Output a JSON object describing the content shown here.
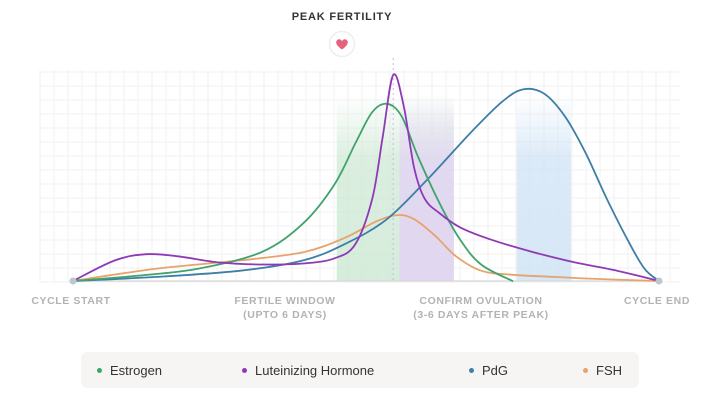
{
  "chart_data": {
    "type": "line",
    "title": "PEAK FERTILITY",
    "x_annotations": [
      {
        "lines": [
          "CYCLE START"
        ]
      },
      {
        "lines": [
          "FERTILE WINDOW",
          "(UPTO 6 DAYS)"
        ]
      },
      {
        "lines": [
          "CONFIRM OVULATION",
          "(3-6 DAYS AFTER PEAK)"
        ]
      },
      {
        "lines": [
          "CYCLE END"
        ]
      }
    ],
    "x_range": [
      0,
      28
    ],
    "y_range": [
      0,
      100
    ],
    "grid": true,
    "legend_position": "bottom",
    "bands": [
      {
        "from": 12.6,
        "to": 18.2,
        "color": "#cfe9d5"
      },
      {
        "from": 15.6,
        "to": 18.2,
        "color": "#e3d3f5"
      },
      {
        "from": 21.2,
        "to": 23.8,
        "color": "#cfe3f5"
      }
    ],
    "peak_marker_x": 15.3,
    "series": [
      {
        "name": "Estrogen",
        "color": "#3fa36c",
        "x": [
          0,
          3,
          6,
          9,
          11,
          12.5,
          13.5,
          14.3,
          15,
          15.7,
          16.5,
          17.5,
          18.5,
          19.5,
          21
        ],
        "y": [
          0,
          2.5,
          6,
          14,
          28,
          47,
          67,
          82,
          86,
          80,
          60,
          38,
          20,
          8,
          0
        ]
      },
      {
        "name": "Luteinizing Hormone",
        "color": "#8e3ab5",
        "x": [
          0,
          2,
          3.5,
          5,
          7,
          9,
          11,
          12.5,
          13.5,
          14.3,
          14.8,
          15.3,
          15.8,
          16.3,
          16.8,
          17.5,
          18.5,
          20,
          22,
          24,
          26,
          28
        ],
        "y": [
          0,
          10,
          13,
          12,
          9,
          8,
          8.5,
          11,
          18,
          40,
          70,
          100,
          85,
          55,
          40,
          33,
          26,
          20,
          14,
          9,
          5,
          0
        ]
      },
      {
        "name": "PdG",
        "color": "#3f7ea6",
        "x": [
          0,
          4,
          8,
          11,
          13,
          15,
          17,
          19,
          20.5,
          21.5,
          22.5,
          23.5,
          24.5,
          25.5,
          26.5,
          27.3,
          28
        ],
        "y": [
          0,
          2,
          5,
          10,
          18,
          30,
          50,
          72,
          87,
          93,
          91,
          80,
          62,
          40,
          20,
          6,
          0
        ]
      },
      {
        "name": "FSH",
        "color": "#e8a26b",
        "x": [
          0,
          4,
          8,
          11,
          13,
          14.5,
          15.5,
          16.3,
          17.3,
          18.3,
          19.5,
          21,
          23,
          25,
          28
        ],
        "y": [
          0,
          6,
          10,
          14,
          21,
          29,
          32,
          30,
          22,
          12,
          5,
          3,
          2,
          1,
          0
        ]
      }
    ]
  }
}
